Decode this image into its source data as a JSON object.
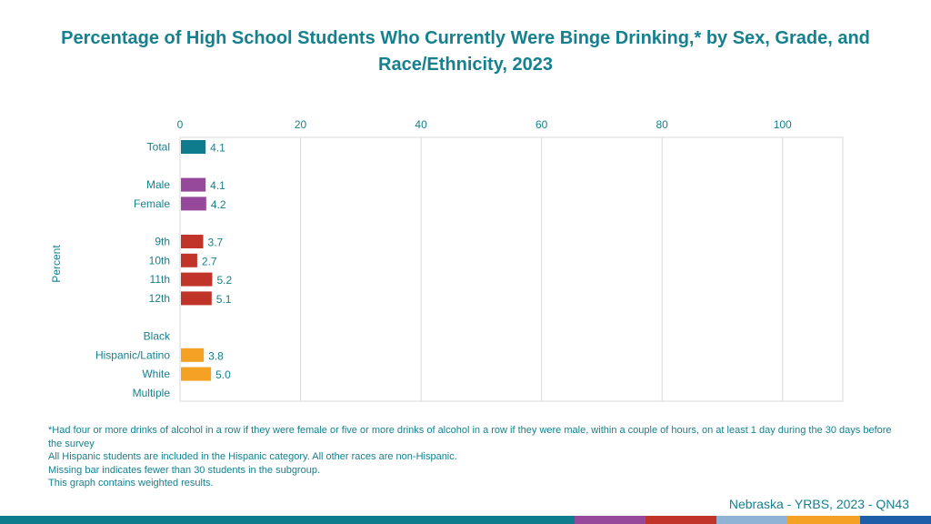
{
  "title": "Percentage of High School Students Who Currently Were Binge Drinking,* by Sex, Grade, and Race/Ethnicity, 2023",
  "chart_data": {
    "type": "bar",
    "orientation": "horizontal",
    "title": "Percentage of High School Students Who Currently Were Binge Drinking,* by Sex, Grade, and Race/Ethnicity, 2023",
    "xlabel": "",
    "ylabel": "Percent",
    "xlim": [
      0,
      110
    ],
    "ticks": [
      0,
      20,
      40,
      60,
      80,
      100
    ],
    "tick_position": "top",
    "grid": true,
    "groups": [
      {
        "name": "Total",
        "color": "#0e7c8c",
        "categories": [
          "Total"
        ],
        "values": [
          4.1
        ]
      },
      {
        "name": "Sex",
        "color": "#96489a",
        "categories": [
          "Male",
          "Female"
        ],
        "values": [
          4.1,
          4.2
        ]
      },
      {
        "name": "Grade",
        "color": "#c0342a",
        "categories": [
          "9th",
          "10th",
          "11th",
          "12th"
        ],
        "values": [
          3.7,
          2.7,
          5.2,
          5.1
        ]
      },
      {
        "name": "Race/Ethnicity",
        "color": "#f4a124",
        "categories": [
          "Black",
          "Hispanic/Latino",
          "White",
          "Multiple"
        ],
        "values": [
          null,
          3.8,
          5.0,
          null
        ]
      }
    ],
    "value_labels": [
      "4.1",
      "4.1",
      "4.2",
      "3.7",
      "2.7",
      "5.2",
      "5.1",
      "3.8",
      "5.0"
    ]
  },
  "footnotes": [
    "*Had four or more drinks of alcohol in a row if they were female or five or more drinks of alcohol in a row if they were male, within a couple of hours, on at least 1 day during the 30 days before the survey",
    "All Hispanic students are included in the Hispanic category.  All other races are non-Hispanic.",
    "Missing bar indicates fewer than 30 students in the subgroup.",
    "This graph contains weighted results."
  ],
  "source": "Nebraska - YRBS, 2023 - QN43",
  "colors": {
    "title": "#16808e",
    "total": "#0e7c8c",
    "sex": "#96489a",
    "grade": "#c0342a",
    "race": "#f4a124",
    "bottom_bar": [
      "#0e7c8c",
      "#96489a",
      "#c0342a",
      "#8fb3d4",
      "#f4a124",
      "#1e5ea8"
    ]
  }
}
